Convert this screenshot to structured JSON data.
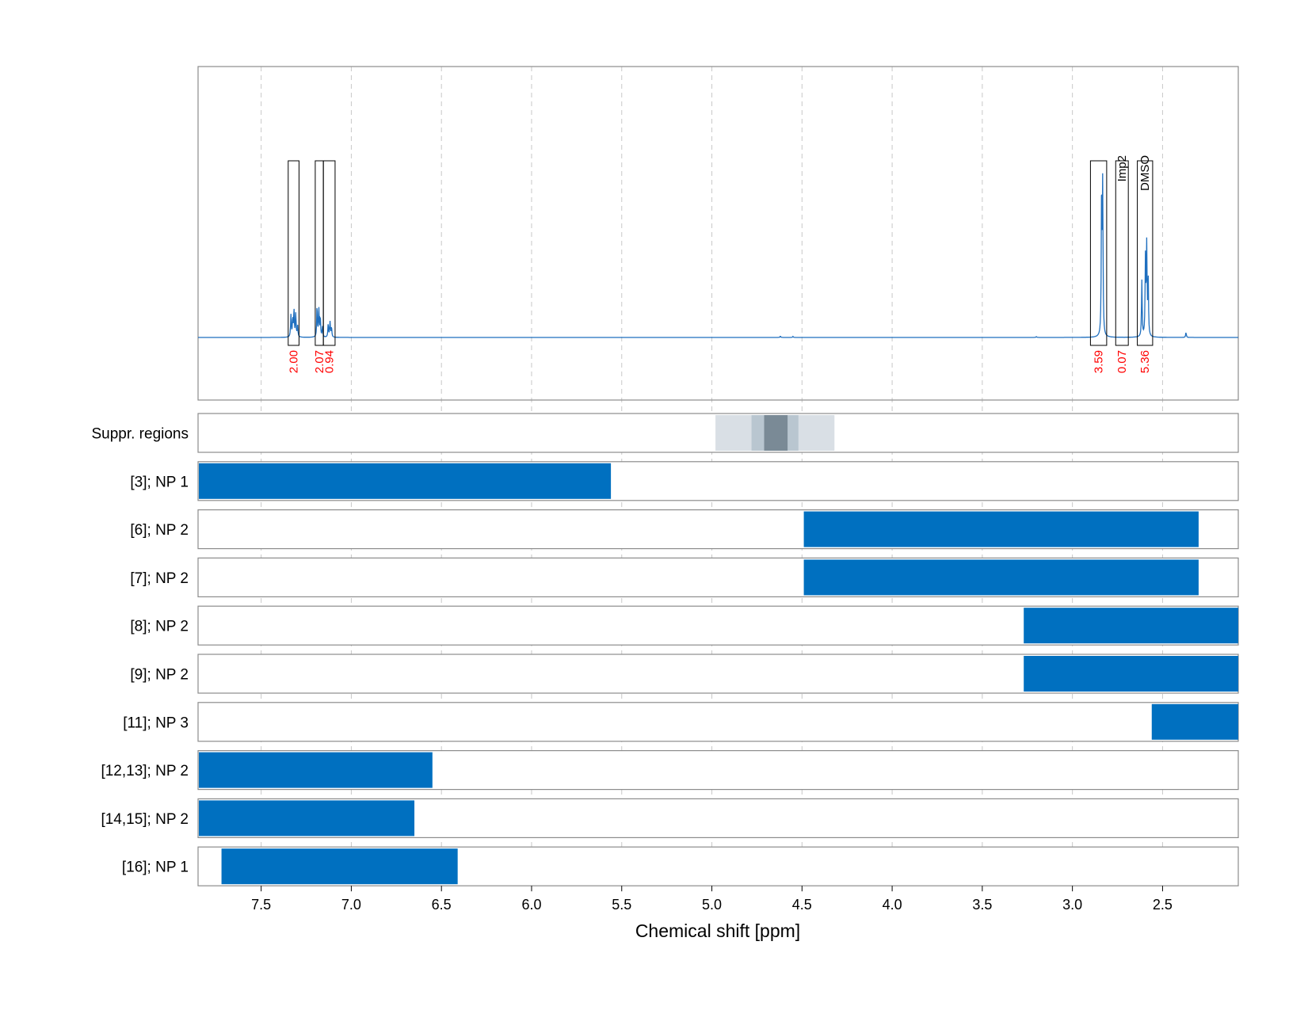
{
  "chart_data": {
    "type": "nmr_spectrum_with_range_tracks",
    "xlabel": "Chemical shift [ppm]",
    "xlim": [
      7.85,
      2.08
    ],
    "x_reversed": true,
    "xticks": [
      "7.5",
      "7.0",
      "6.5",
      "6.0",
      "5.5",
      "5.0",
      "4.5",
      "4.0",
      "3.5",
      "3.0",
      "2.5"
    ],
    "xtick_values": [
      7.5,
      7.0,
      6.5,
      6.0,
      5.5,
      5.0,
      4.5,
      4.0,
      3.5,
      3.0,
      2.5
    ],
    "grid": "vertical dashed",
    "spectrum_color": "#1f6fbf",
    "spectrum_peaks": [
      {
        "ppm": 7.335,
        "height": 0.13
      },
      {
        "ppm": 7.325,
        "height": 0.11
      },
      {
        "ppm": 7.318,
        "height": 0.16
      },
      {
        "ppm": 7.308,
        "height": 0.14
      },
      {
        "ppm": 7.298,
        "height": 0.07
      },
      {
        "ppm": 7.19,
        "height": 0.19
      },
      {
        "ppm": 7.18,
        "height": 0.16
      },
      {
        "ppm": 7.172,
        "height": 0.12
      },
      {
        "ppm": 7.16,
        "height": 0.06
      },
      {
        "ppm": 7.128,
        "height": 0.08
      },
      {
        "ppm": 7.118,
        "height": 0.09
      },
      {
        "ppm": 7.11,
        "height": 0.06
      },
      {
        "ppm": 4.62,
        "height": 0.008
      },
      {
        "ppm": 4.55,
        "height": 0.006
      },
      {
        "ppm": 3.2,
        "height": 0.005
      },
      {
        "ppm": 2.838,
        "height": 0.9
      },
      {
        "ppm": 2.832,
        "height": 0.86
      },
      {
        "ppm": 2.615,
        "height": 0.33
      },
      {
        "ppm": 2.595,
        "height": 0.45
      },
      {
        "ppm": 2.588,
        "height": 0.52
      },
      {
        "ppm": 2.58,
        "height": 0.35
      },
      {
        "ppm": 2.37,
        "height": 0.03
      }
    ],
    "integration_regions": [
      {
        "from": 7.35,
        "to": 7.29,
        "label": "",
        "integral": "2.00"
      },
      {
        "from": 7.2,
        "to": 7.155,
        "label": "",
        "integral": "2.07"
      },
      {
        "from": 7.155,
        "to": 7.09,
        "label": "",
        "integral": "0.94"
      },
      {
        "from": 2.9,
        "to": 2.81,
        "label": "",
        "integral": "3.59"
      },
      {
        "from": 2.76,
        "to": 2.69,
        "label": "Imp2",
        "integral": "0.07"
      },
      {
        "from": 2.64,
        "to": 2.555,
        "label": "DMSO",
        "integral": "5.36"
      }
    ],
    "integral_color": "#ff0000",
    "suppressed_regions": [
      {
        "from": 4.98,
        "to": 4.32,
        "shade": "#d9dfe5"
      },
      {
        "from": 4.78,
        "to": 4.52,
        "shade": "#b9c6d0"
      },
      {
        "from": 4.71,
        "to": 4.58,
        "shade": "#7a8a96"
      }
    ],
    "tracks": [
      {
        "label": "Suppr. regions",
        "type": "suppression"
      },
      {
        "label": "[3]; NP 1",
        "from": 7.85,
        "to": 5.56
      },
      {
        "label": "[6]; NP 2",
        "from": 4.49,
        "to": 2.3
      },
      {
        "label": "[7]; NP 2",
        "from": 4.49,
        "to": 2.3
      },
      {
        "label": "[8]; NP 2",
        "from": 3.27,
        "to": 2.08
      },
      {
        "label": "[9]; NP 2",
        "from": 3.27,
        "to": 2.08
      },
      {
        "label": "[11]; NP 3",
        "from": 2.56,
        "to": 2.08
      },
      {
        "label": "[12,13]; NP 2",
        "from": 7.85,
        "to": 6.55
      },
      {
        "label": "[14,15]; NP 2",
        "from": 7.85,
        "to": 6.65
      },
      {
        "label": "[16]; NP 1",
        "from": 7.72,
        "to": 6.41
      }
    ],
    "bar_color": "#0070c0"
  }
}
